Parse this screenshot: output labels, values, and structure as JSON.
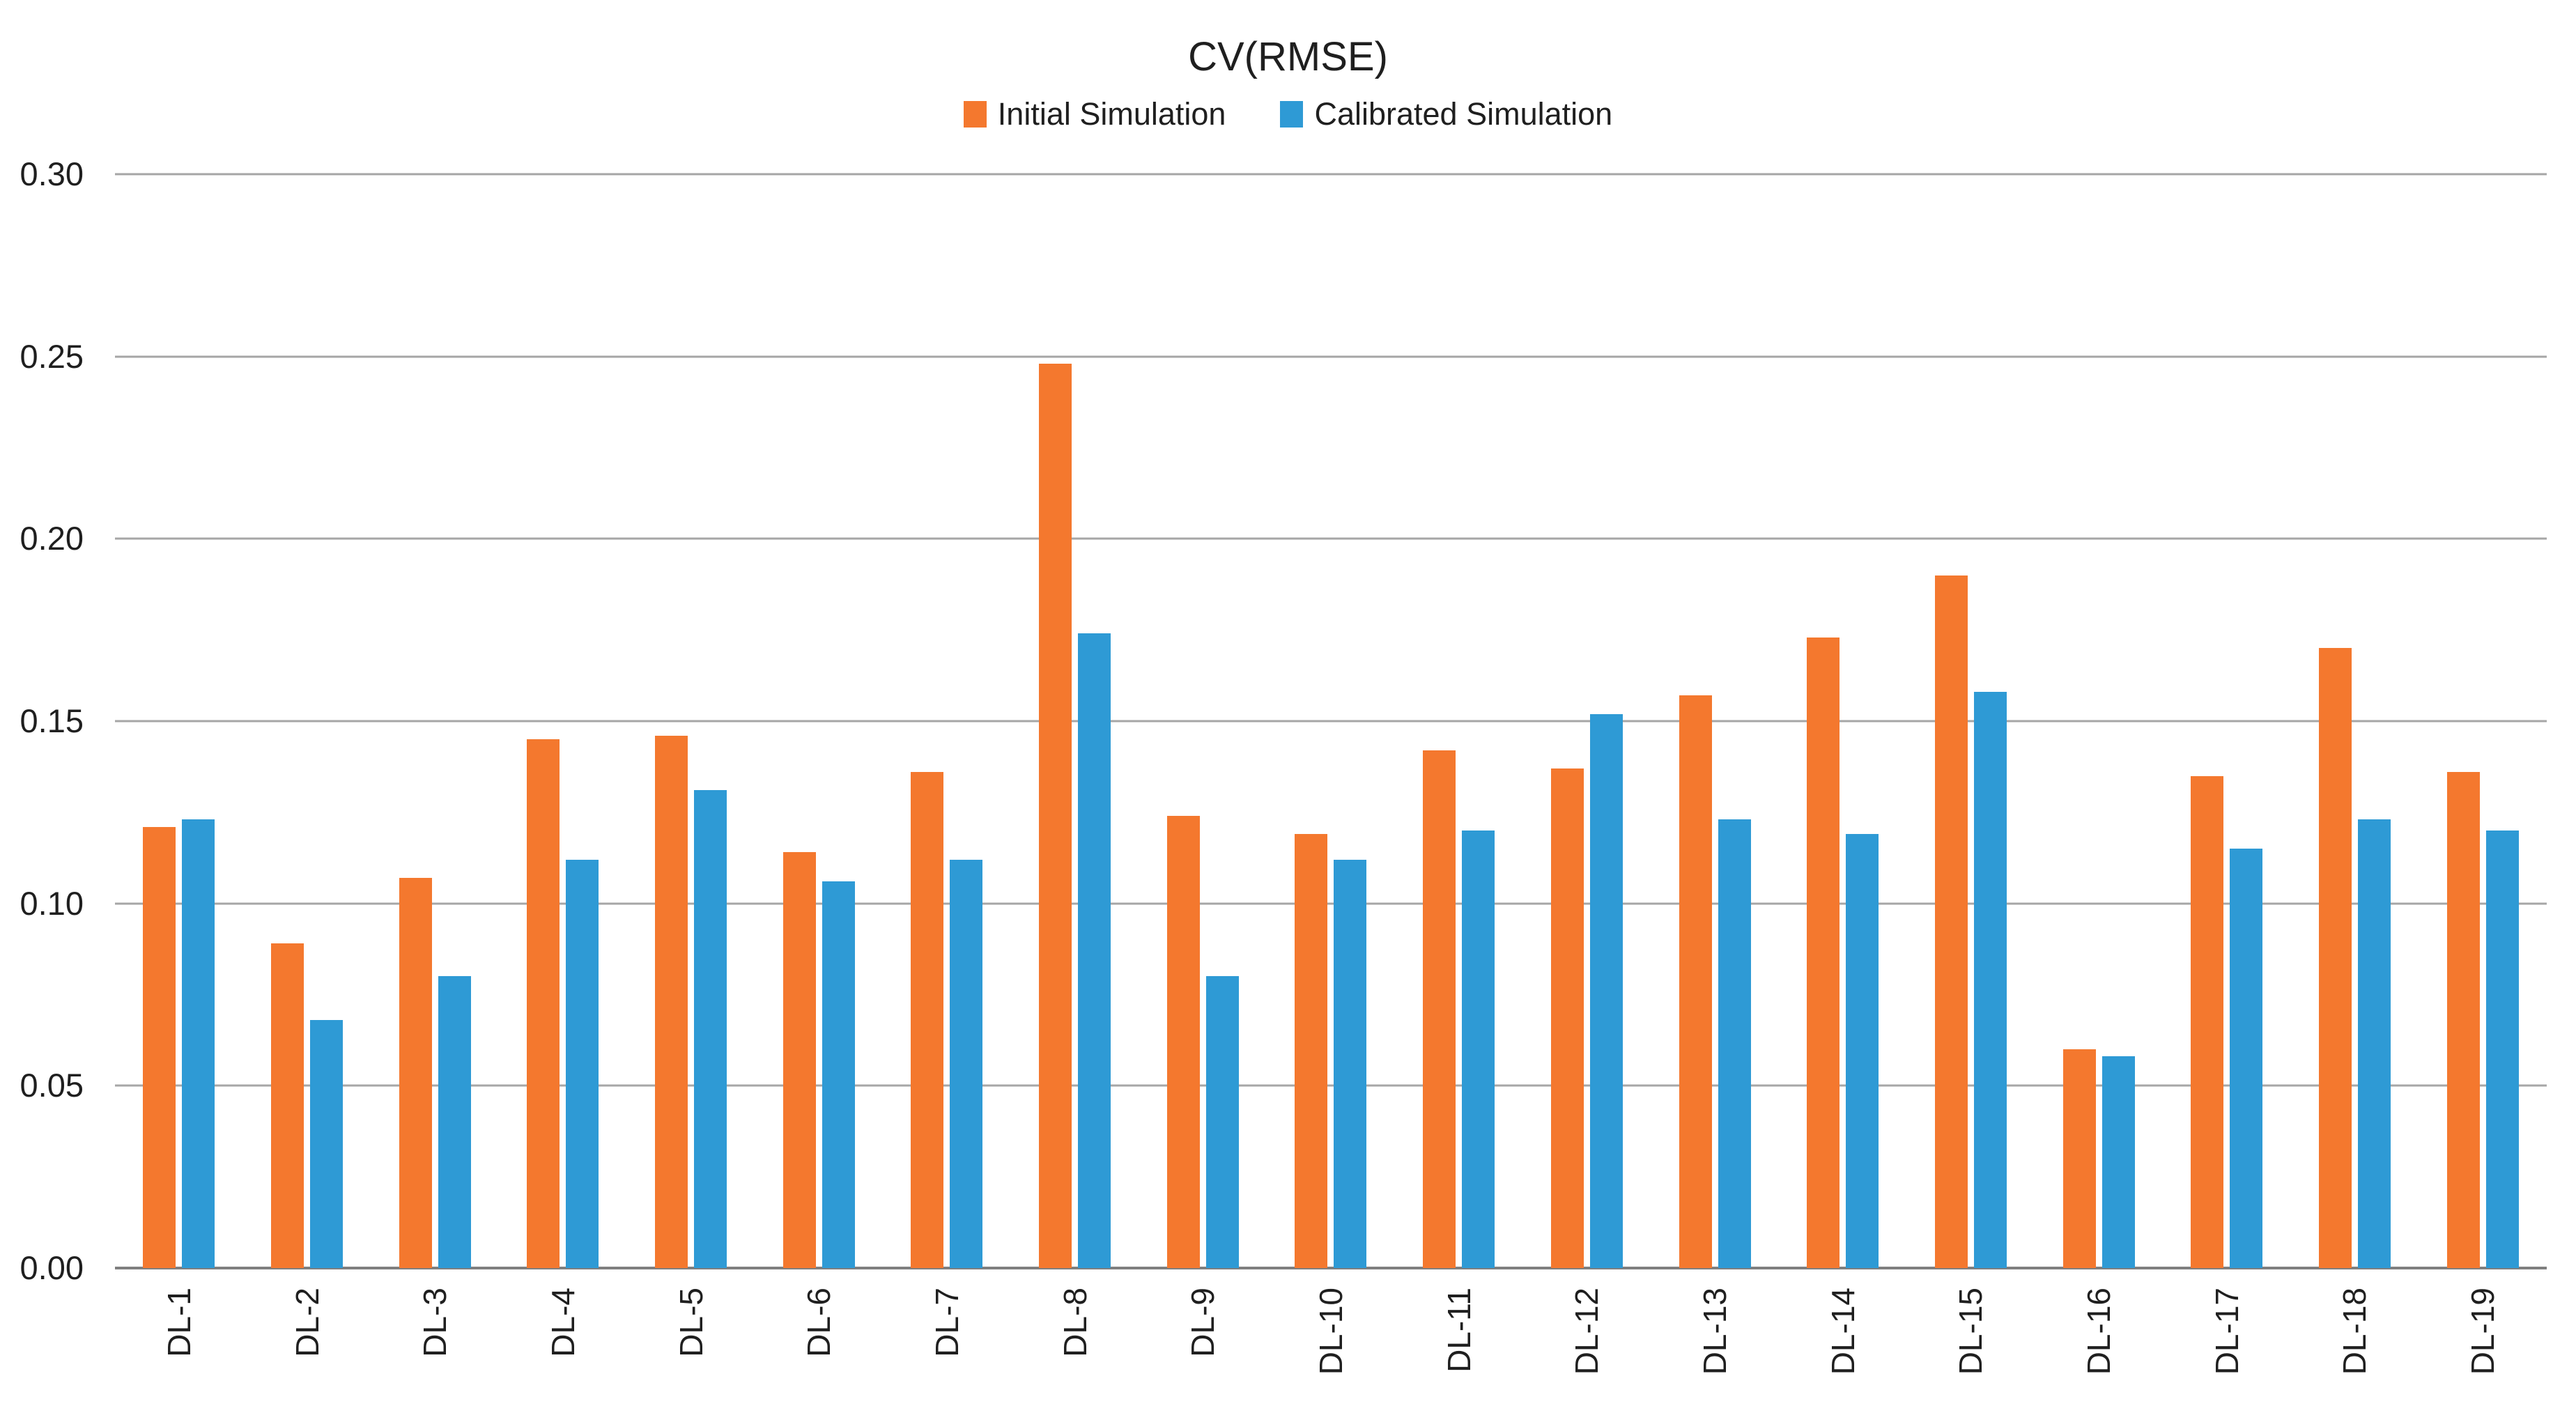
{
  "chart_data": {
    "type": "bar",
    "title": "CV(RMSE)",
    "categories": [
      "DL-1",
      "DL-2",
      "DL-3",
      "DL-4",
      "DL-5",
      "DL-6",
      "DL-7",
      "DL-8",
      "DL-9",
      "DL-10",
      "DL-11",
      "DL-12",
      "DL-13",
      "DL-14",
      "DL-15",
      "DL-16",
      "DL-17",
      "DL-18",
      "DL-19"
    ],
    "series": [
      {
        "name": "Initial Simulation",
        "color": "#F4782E",
        "values": [
          0.121,
          0.089,
          0.107,
          0.145,
          0.146,
          0.114,
          0.136,
          0.248,
          0.124,
          0.119,
          0.142,
          0.137,
          0.157,
          0.173,
          0.19,
          0.06,
          0.135,
          0.17,
          0.136
        ]
      },
      {
        "name": "Calibrated Simulation",
        "color": "#2E9AD5",
        "values": [
          0.123,
          0.068,
          0.08,
          0.112,
          0.131,
          0.106,
          0.112,
          0.174,
          0.08,
          0.112,
          0.12,
          0.152,
          0.123,
          0.119,
          0.158,
          0.058,
          0.115,
          0.123,
          0.12
        ]
      }
    ],
    "xlabel": "",
    "ylabel": "",
    "ylim": [
      0,
      0.3
    ],
    "ytick_labels": [
      "0.30",
      "0.25",
      "0.20",
      "0.15",
      "0.10",
      "0.05",
      "0.00"
    ],
    "ytick_values": [
      0.3,
      0.25,
      0.2,
      0.15,
      0.1,
      0.05,
      0.0
    ],
    "grid": "horizontal-on",
    "legend_position": "top-center"
  },
  "colors": {
    "gridline": "#A6A6A6",
    "axis_line": "#7F7F7F",
    "text": "#1F1F1F",
    "background": "#FFFFFF"
  }
}
